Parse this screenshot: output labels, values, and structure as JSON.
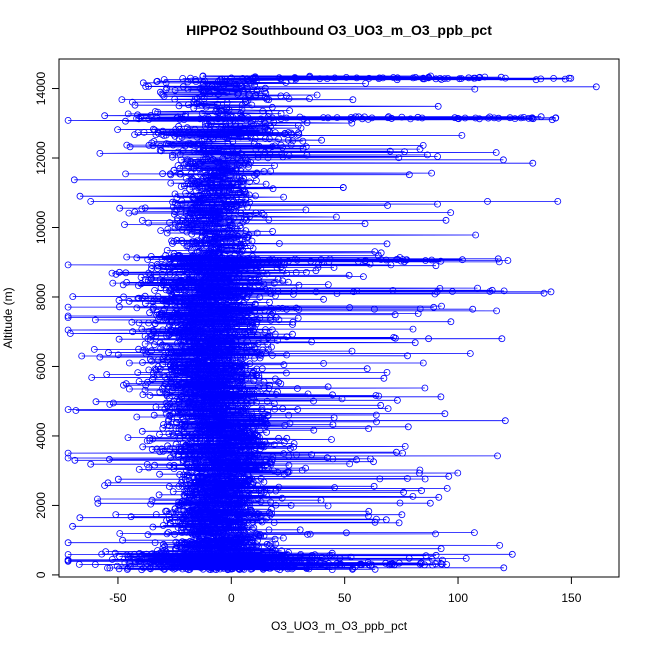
{
  "chart_data": {
    "type": "scatter",
    "title": "HIPPO2 Southbound O3_UO3_m_O3_ppb_pct",
    "xlabel": "O3_UO3_m_O3_ppb_pct",
    "ylabel": "Altitude (m)",
    "xlim": [
      -76,
      171
    ],
    "ylim": [
      -60,
      14850
    ],
    "x_ticks": [
      -50,
      0,
      50,
      100,
      150
    ],
    "y_ticks": [
      0,
      2000,
      4000,
      6000,
      8000,
      10000,
      12000,
      14000
    ],
    "x_tick_labels": [
      "-50",
      "0",
      "50",
      "100",
      "150"
    ],
    "y_tick_labels": [
      "0",
      "2000",
      "4000",
      "6000",
      "8000",
      "10000",
      "12000",
      "14000"
    ],
    "grid": false,
    "legend": "none",
    "series_color": "#0000ff",
    "marker": "open-circle",
    "line": true,
    "sample_points": [
      {
        "x": 95,
        "y": 300
      },
      {
        "x": 74,
        "y": 1500
      },
      {
        "x": 63,
        "y": 2550
      },
      {
        "x": 65,
        "y": 5150
      },
      {
        "x": 87,
        "y": 6800
      },
      {
        "x": -71,
        "y": 6950
      },
      {
        "x": 141,
        "y": 8150
      },
      {
        "x": 117,
        "y": 7600
      },
      {
        "x": 122,
        "y": 9050
      },
      {
        "x": 113,
        "y": 10750
      },
      {
        "x": 144,
        "y": 10750
      },
      {
        "x": 120,
        "y": 11950
      },
      {
        "x": 133,
        "y": 11850
      },
      {
        "x": 143,
        "y": 13150
      },
      {
        "x": 161,
        "y": 14050
      },
      {
        "x": 149,
        "y": 14300
      },
      {
        "x": -62,
        "y": 10750
      },
      {
        "x": -66,
        "y": 6300
      },
      {
        "x": -69,
        "y": 3300
      },
      {
        "x": -70,
        "y": 1400
      },
      {
        "x": -60,
        "y": 300
      },
      {
        "x": -18,
        "y": 14300
      }
    ]
  }
}
